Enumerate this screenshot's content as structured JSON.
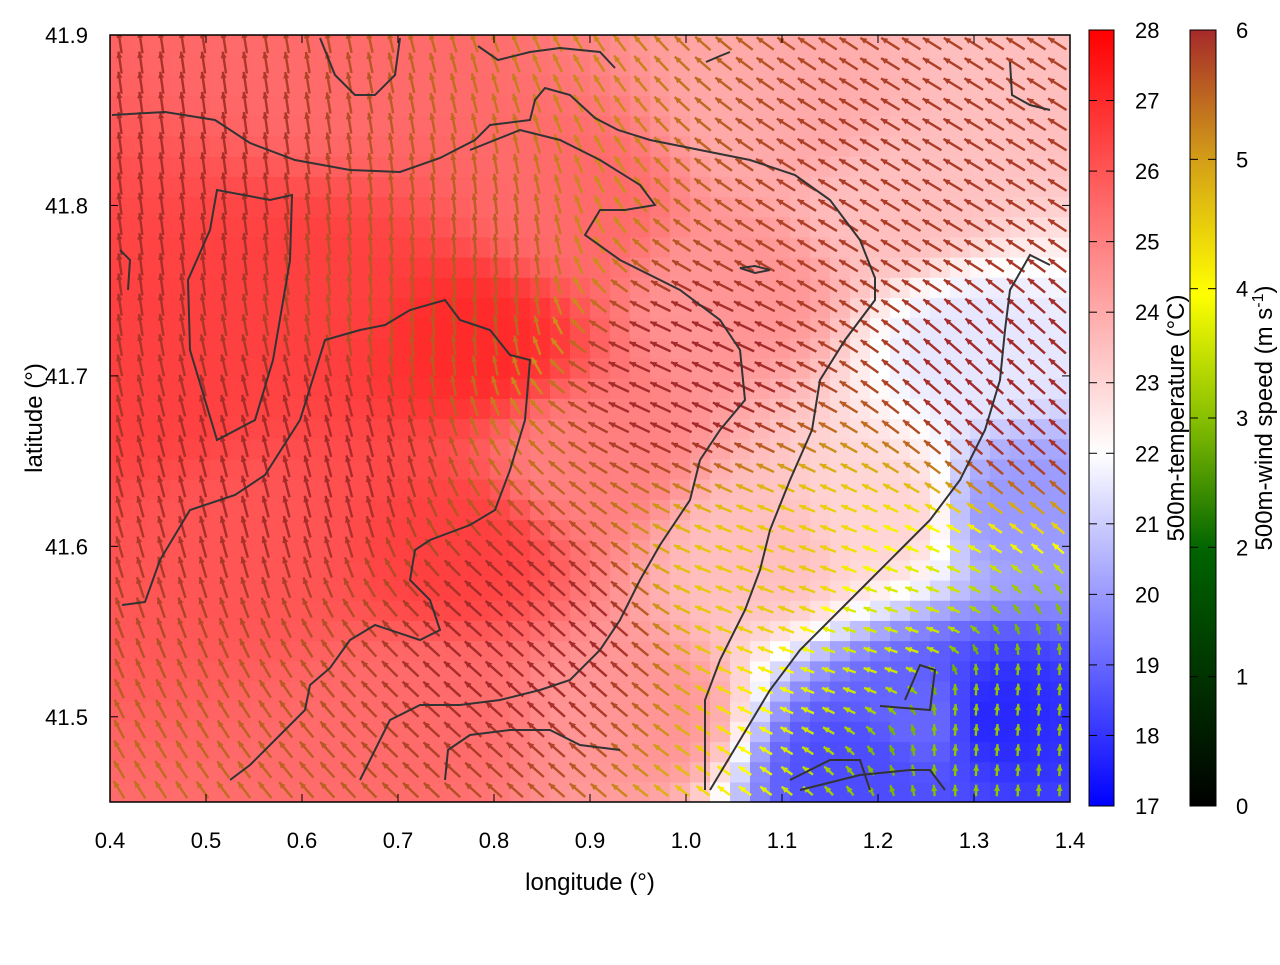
{
  "chart_data": {
    "type": "heatmap",
    "subtype": "temperature field with wind vector overlay and contours",
    "xlabel": "longitude (°)",
    "ylabel": "latitude (°)",
    "xlim": [
      0.4,
      1.4
    ],
    "ylim": [
      41.45,
      41.9
    ],
    "x_ticks": [
      "0.4",
      "0.5",
      "0.6",
      "0.7",
      "0.8",
      "0.9",
      "1.0",
      "1.1",
      "1.2",
      "1.3",
      "1.4"
    ],
    "y_ticks": [
      "41.5",
      "41.6",
      "41.7",
      "41.8",
      "41.9"
    ],
    "grid": false,
    "temperature_colorbar": {
      "label": "500m-temperature (°C)",
      "range": [
        17,
        28
      ],
      "ticks": [
        "17",
        "18",
        "19",
        "20",
        "21",
        "22",
        "23",
        "24",
        "25",
        "26",
        "27",
        "28"
      ],
      "colors": [
        "#0000ff",
        "#ffffff",
        "#ff0000"
      ]
    },
    "wind_colorbar": {
      "label_prefix": "500m-wind speed (m s",
      "label_sup": "-1",
      "label_suffix": ")",
      "range": [
        0,
        6
      ],
      "ticks": [
        "0",
        "1",
        "2",
        "3",
        "4",
        "5",
        "6"
      ],
      "colors": [
        "#000000",
        "#006400",
        "#88c000",
        "#ffff00",
        "#d4a017",
        "#a52a2a"
      ]
    },
    "temperature_field": [
      {
        "lon": 0.45,
        "lat": 41.7,
        "temp": 26.5
      },
      {
        "lon": 0.55,
        "lat": 41.6,
        "temp": 26.0
      },
      {
        "lon": 0.6,
        "lat": 41.75,
        "temp": 26.5
      },
      {
        "lon": 0.65,
        "lat": 41.88,
        "temp": 25.5
      },
      {
        "lon": 0.78,
        "lat": 41.72,
        "temp": 27.0
      },
      {
        "lon": 0.76,
        "lat": 41.6,
        "temp": 26.5
      },
      {
        "lon": 0.72,
        "lat": 41.5,
        "temp": 25.5
      },
      {
        "lon": 0.88,
        "lat": 41.8,
        "temp": 25.5
      },
      {
        "lon": 0.9,
        "lat": 41.65,
        "temp": 25.0
      },
      {
        "lon": 0.95,
        "lat": 41.5,
        "temp": 24.5
      },
      {
        "lon": 1.05,
        "lat": 41.75,
        "temp": 24.5
      },
      {
        "lon": 1.08,
        "lat": 41.6,
        "temp": 23.5
      },
      {
        "lon": 1.1,
        "lat": 41.85,
        "temp": 24.0
      },
      {
        "lon": 1.22,
        "lat": 41.8,
        "temp": 23.5
      },
      {
        "lon": 1.2,
        "lat": 41.62,
        "temp": 23.0
      },
      {
        "lon": 1.3,
        "lat": 41.72,
        "temp": 21.5
      },
      {
        "lon": 1.35,
        "lat": 41.62,
        "temp": 20.0
      },
      {
        "lon": 1.25,
        "lat": 41.5,
        "temp": 19.0
      },
      {
        "lon": 1.32,
        "lat": 41.5,
        "temp": 17.8
      },
      {
        "lon": 1.18,
        "lat": 41.47,
        "temp": 18.5
      },
      {
        "lon": 1.38,
        "lat": 41.88,
        "temp": 23.5
      }
    ],
    "wind_field": [
      {
        "lon": 0.45,
        "lat": 41.8,
        "u": -0.8,
        "v": 5.9
      },
      {
        "lon": 0.6,
        "lat": 41.65,
        "u": -1.5,
        "v": 5.8
      },
      {
        "lon": 0.75,
        "lat": 41.75,
        "u": -0.5,
        "v": 5.5
      },
      {
        "lon": 0.85,
        "lat": 41.55,
        "u": -4.5,
        "v": 4.0
      },
      {
        "lon": 1.0,
        "lat": 41.7,
        "u": -5.5,
        "v": 2.5
      },
      {
        "lon": 1.1,
        "lat": 41.58,
        "u": -4.0,
        "v": 1.5
      },
      {
        "lon": 1.2,
        "lat": 41.55,
        "u": -3.0,
        "v": 1.0
      },
      {
        "lon": 1.25,
        "lat": 41.8,
        "u": -5.0,
        "v": 3.0
      },
      {
        "lon": 1.33,
        "lat": 41.5,
        "u": 0.2,
        "v": 2.5
      },
      {
        "lon": 1.35,
        "lat": 41.7,
        "u": -4.5,
        "v": 4.0
      }
    ],
    "contour_color": "#333333"
  }
}
